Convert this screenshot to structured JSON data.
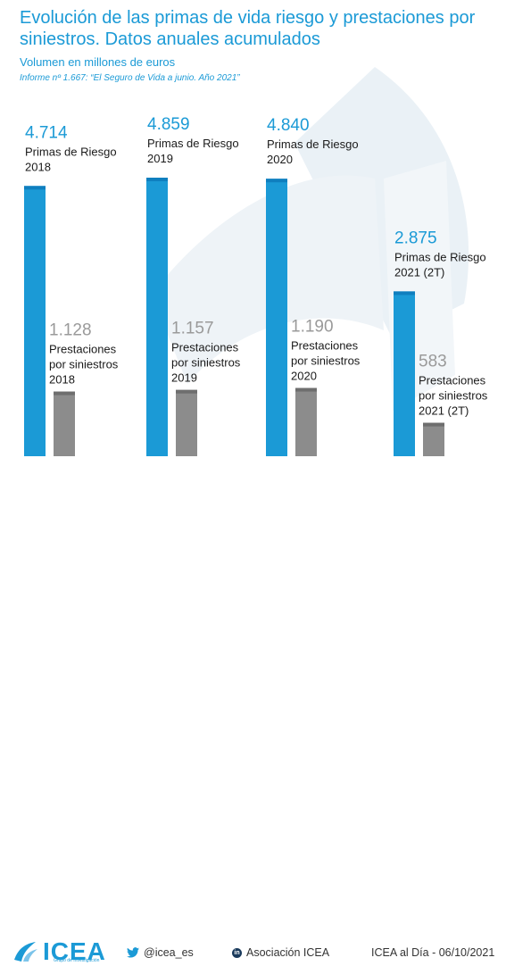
{
  "title": "Evolución de las primas de vida riesgo y prestaciones por siniestros. Datos anuales acumulados",
  "subtitle": "Volumen en millones de euros",
  "source": "Informe nº 1.667: “El Seguro de Vida a junio. Año 2021”",
  "colors": {
    "primas": "#1b9ad6",
    "prestaciones": "#8c8c8c",
    "text_accent": "#1b9ad6"
  },
  "chart_data": {
    "type": "bar",
    "title": "Evolución de las primas de vida riesgo y prestaciones por siniestros. Datos anuales acumulados",
    "ylabel": "",
    "xlabel": "",
    "ylim": [
      0,
      5000
    ],
    "categories": [
      "2018",
      "2019",
      "2020",
      "2021 (2T)"
    ],
    "series": [
      {
        "name": "Primas de Riesgo",
        "values": [
          4714,
          4859,
          4840,
          2875
        ],
        "display": [
          "4.714",
          "4.859",
          "4.840",
          "2.875"
        ],
        "labels": [
          [
            "Primas de Riesgo",
            "2018"
          ],
          [
            "Primas de Riesgo",
            "2019"
          ],
          [
            "Primas de Riesgo",
            "2020"
          ],
          [
            "Primas de Riesgo",
            "2021 (2T)"
          ]
        ]
      },
      {
        "name": "Prestaciones por siniestros",
        "values": [
          1128,
          1157,
          1190,
          583
        ],
        "display": [
          "1.128",
          "1.157",
          "1.190",
          "583"
        ],
        "labels": [
          [
            "Prestaciones",
            "por siniestros",
            "2018"
          ],
          [
            "Prestaciones",
            "por siniestros",
            "2019"
          ],
          [
            "Prestaciones",
            "por siniestros",
            "2020"
          ],
          [
            "Prestaciones",
            "por siniestros",
            "2021 (2T)"
          ]
        ]
      }
    ]
  },
  "footer": {
    "logo": "ICEA",
    "logo_tagline": "Grupo de Investigación",
    "twitter_icon": "twitter-bird-icon",
    "twitter": "@icea_es",
    "linkedin_icon": "linkedin-icon",
    "linkedin": "Asociación ICEA",
    "date": "ICEA al Día - 06/10/2021"
  }
}
